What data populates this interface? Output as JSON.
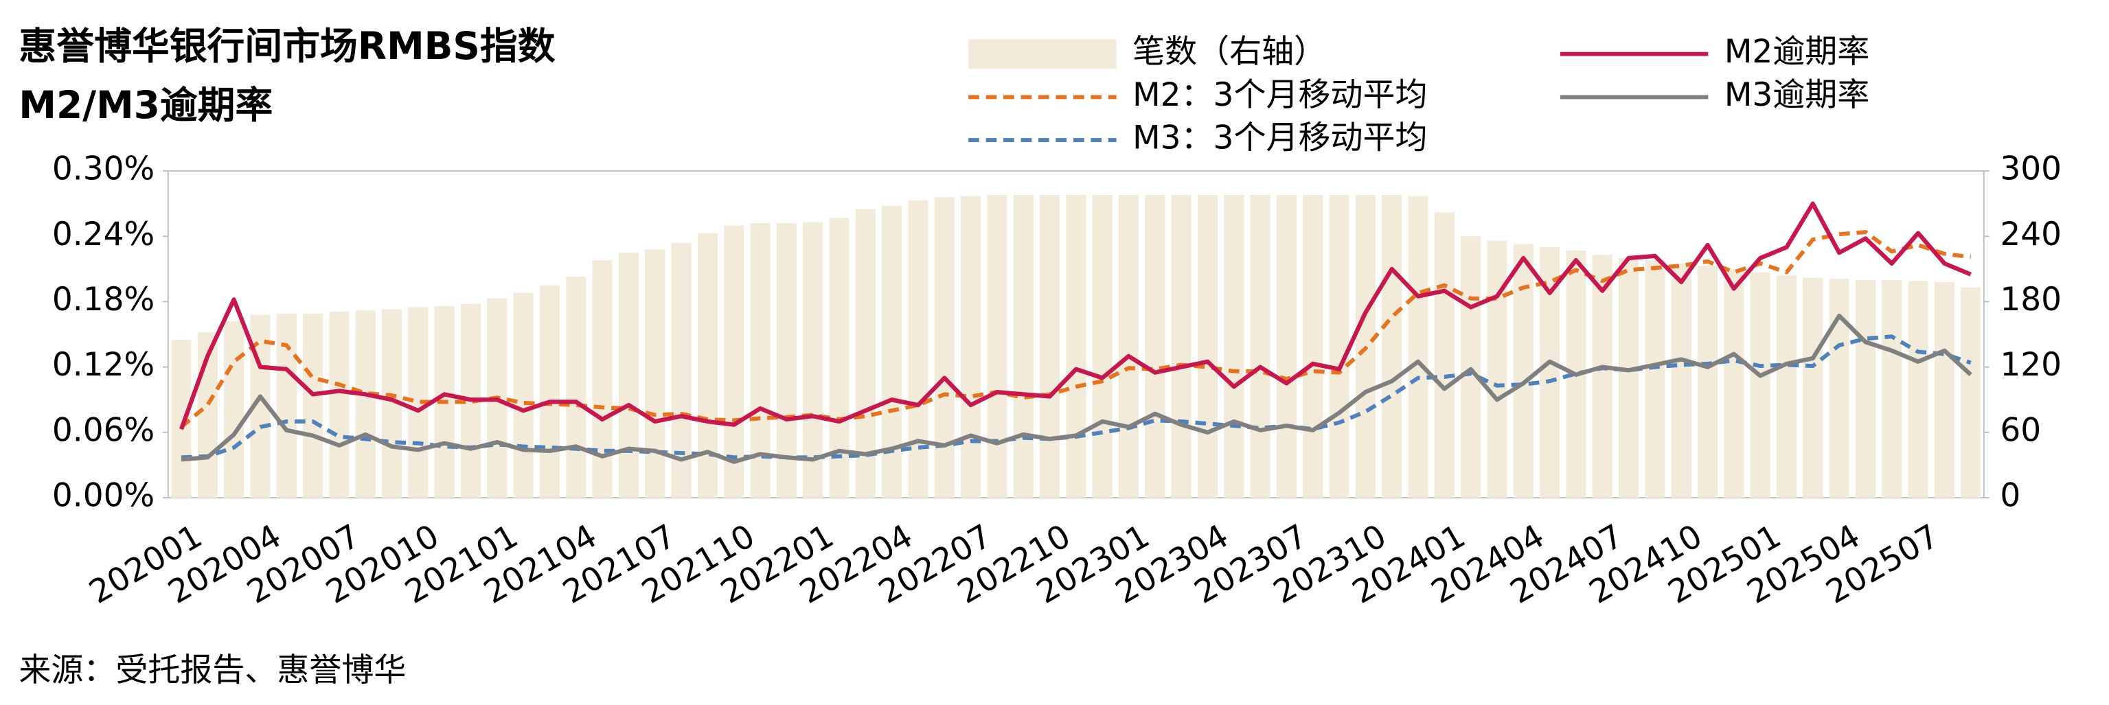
{
  "chart_data": {
    "type": "combo",
    "title": "惠誉博华银行间市场RMBS指数",
    "subtitle": "M2/M3逾期率",
    "source": "来源：受托报告、惠誉博华",
    "categories": [
      "202001",
      null,
      null,
      "202004",
      null,
      null,
      "202007",
      null,
      null,
      "202010",
      null,
      null,
      "202101",
      null,
      null,
      "202104",
      null,
      null,
      "202107",
      null,
      null,
      "202110",
      null,
      null,
      "202201",
      null,
      null,
      "202204",
      null,
      null,
      "202207",
      null,
      null,
      "202210",
      null,
      null,
      "202301",
      null,
      null,
      "202304",
      null,
      null,
      "202307",
      null,
      null,
      "202310",
      null,
      null,
      "202401",
      null,
      null,
      "202404",
      null,
      null,
      "202407",
      null,
      null,
      "202410",
      null,
      null,
      "202501",
      null,
      null,
      "202504",
      null,
      null,
      "202507",
      null,
      null
    ],
    "series": [
      {
        "name": "笔数（右轴）",
        "type": "bar",
        "axis": "y2",
        "color": "#f3ebda",
        "values": [
          145,
          152,
          162,
          168,
          169,
          169,
          171,
          172,
          173,
          175,
          176,
          178,
          183,
          188,
          195,
          203,
          218,
          225,
          228,
          234,
          243,
          250,
          252,
          252,
          253,
          257,
          265,
          268,
          273,
          276,
          277,
          278,
          278,
          278,
          278,
          278,
          278,
          278,
          278,
          278,
          278,
          278,
          278,
          278,
          278,
          278,
          278,
          277,
          262,
          240,
          236,
          233,
          230,
          227,
          223,
          220,
          218,
          215,
          213,
          210,
          207,
          204,
          202,
          201,
          200,
          200,
          199,
          198,
          193
        ]
      },
      {
        "name": "M2：3个月移动平均",
        "type": "line",
        "style": "dashed",
        "color": "#e8731f",
        "values": [
          0.065,
          0.085,
          0.125,
          0.144,
          0.14,
          0.11,
          0.104,
          0.096,
          0.094,
          0.088,
          0.088,
          0.088,
          0.092,
          0.087,
          0.086,
          0.085,
          0.083,
          0.082,
          0.076,
          0.077,
          0.072,
          0.071,
          0.073,
          0.074,
          0.076,
          0.072,
          0.075,
          0.08,
          0.085,
          0.095,
          0.093,
          0.097,
          0.092,
          0.095,
          0.102,
          0.107,
          0.119,
          0.118,
          0.122,
          0.12,
          0.116,
          0.116,
          0.109,
          0.116,
          0.115,
          0.137,
          0.166,
          0.188,
          0.195,
          0.183,
          0.183,
          0.193,
          0.198,
          0.209,
          0.199,
          0.209,
          0.211,
          0.213,
          0.217,
          0.207,
          0.215,
          0.207,
          0.237,
          0.242,
          0.244,
          0.226,
          0.232,
          0.224,
          0.221
        ]
      },
      {
        "name": "M3：3个月移动平均",
        "type": "line",
        "style": "dashed",
        "color": "#4f81bd",
        "values": [
          0.037,
          0.038,
          0.046,
          0.065,
          0.07,
          0.07,
          0.056,
          0.054,
          0.051,
          0.05,
          0.047,
          0.046,
          0.049,
          0.047,
          0.046,
          0.045,
          0.043,
          0.043,
          0.042,
          0.041,
          0.04,
          0.037,
          0.038,
          0.037,
          0.037,
          0.038,
          0.039,
          0.043,
          0.046,
          0.048,
          0.052,
          0.052,
          0.055,
          0.054,
          0.056,
          0.06,
          0.064,
          0.071,
          0.07,
          0.068,
          0.066,
          0.064,
          0.066,
          0.063,
          0.069,
          0.079,
          0.094,
          0.11,
          0.111,
          0.114,
          0.103,
          0.104,
          0.107,
          0.114,
          0.119,
          0.117,
          0.12,
          0.122,
          0.123,
          0.126,
          0.121,
          0.122,
          0.121,
          0.14,
          0.146,
          0.148,
          0.134,
          0.132,
          0.124
        ]
      },
      {
        "name": "M2逾期率",
        "type": "line",
        "style": "solid",
        "color": "#c8174f",
        "values": [
          0.063,
          0.13,
          0.182,
          0.12,
          0.118,
          0.095,
          0.098,
          0.095,
          0.09,
          0.08,
          0.095,
          0.09,
          0.09,
          0.08,
          0.088,
          0.088,
          0.072,
          0.085,
          0.07,
          0.075,
          0.07,
          0.067,
          0.082,
          0.072,
          0.075,
          0.07,
          0.08,
          0.09,
          0.085,
          0.11,
          0.085,
          0.097,
          0.095,
          0.093,
          0.118,
          0.11,
          0.13,
          0.115,
          0.12,
          0.125,
          0.102,
          0.12,
          0.105,
          0.123,
          0.118,
          0.17,
          0.21,
          0.185,
          0.19,
          0.175,
          0.185,
          0.22,
          0.188,
          0.218,
          0.19,
          0.22,
          0.222,
          0.198,
          0.232,
          0.192,
          0.22,
          0.23,
          0.27,
          0.225,
          0.238,
          0.215,
          0.243,
          0.215,
          0.205
        ]
      },
      {
        "name": "M3逾期率",
        "type": "line",
        "style": "solid",
        "color": "#808080",
        "values": [
          0.035,
          0.037,
          0.058,
          0.093,
          0.062,
          0.057,
          0.048,
          0.058,
          0.047,
          0.044,
          0.05,
          0.045,
          0.051,
          0.044,
          0.043,
          0.047,
          0.038,
          0.045,
          0.043,
          0.035,
          0.042,
          0.033,
          0.04,
          0.037,
          0.035,
          0.043,
          0.04,
          0.045,
          0.052,
          0.048,
          0.057,
          0.05,
          0.058,
          0.054,
          0.057,
          0.07,
          0.065,
          0.077,
          0.067,
          0.06,
          0.07,
          0.062,
          0.066,
          0.062,
          0.078,
          0.097,
          0.107,
          0.125,
          0.1,
          0.118,
          0.09,
          0.105,
          0.125,
          0.113,
          0.12,
          0.117,
          0.122,
          0.127,
          0.12,
          0.132,
          0.112,
          0.123,
          0.128,
          0.167,
          0.143,
          0.135,
          0.125,
          0.135,
          0.113
        ]
      }
    ],
    "ylim": [
      0,
      0.3
    ],
    "yticks": [
      {
        "value": 0,
        "label": "0.00%"
      },
      {
        "value": 0.06,
        "label": "0.06%"
      },
      {
        "value": 0.12,
        "label": "0.12%"
      },
      {
        "value": 0.18,
        "label": "0.18%"
      },
      {
        "value": 0.24,
        "label": "0.24%"
      },
      {
        "value": 0.3,
        "label": "0.30%"
      }
    ],
    "y2lim": [
      0,
      300
    ],
    "y2ticks": [
      0,
      60,
      120,
      180,
      240,
      300
    ]
  }
}
